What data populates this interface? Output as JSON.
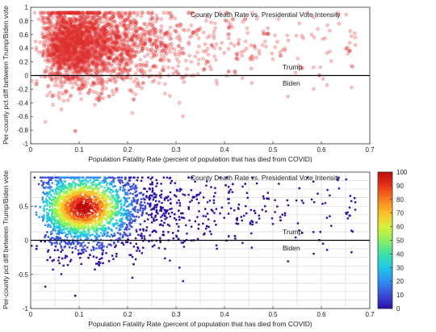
{
  "chart_data": [
    {
      "type": "scatter",
      "title": "County Death Rate vs. Presidential Vote Intensity",
      "xlabel": "Population Fatality Rate (percent of population that has died from COVID)",
      "ylabel": "Per-county pct diff between Trump/Biden vote",
      "xlim": [
        0,
        0.7
      ],
      "ylim": [
        -1,
        1
      ],
      "x_ticks": [
        "0",
        "0.1",
        "0.2",
        "0.3",
        "0.4",
        "0.5",
        "0.6",
        "0.7"
      ],
      "y_ticks": [
        "1",
        "0.8",
        "0.6",
        "0.4",
        "0.2",
        "0",
        "-0.2",
        "-0.4",
        "-0.6",
        "-0.8",
        "-1"
      ],
      "grid": false,
      "marker_color": "#e03030",
      "reference_line_y": 0,
      "annotations": [
        {
          "text": "Trump",
          "x": 0.52,
          "y": 0.09
        },
        {
          "text": "Biden",
          "x": 0.52,
          "y": -0.1
        }
      ],
      "distribution": {
        "count": 3000,
        "dense_cluster_center": [
          0.11,
          0.48
        ],
        "x_range": [
          0,
          0.67
        ],
        "y_range": [
          -0.82,
          0.92
        ]
      }
    },
    {
      "type": "heatmap",
      "title": "County Death Rate vs. Presidential Vote Intensity",
      "xlabel": "Population Fatality Rate (percent of population that has died from COVID)",
      "ylabel": "Per-county pct diff between Trump/Biden vote",
      "xlim": [
        0,
        0.7
      ],
      "ylim": [
        -1,
        1
      ],
      "x_ticks": [
        "0",
        "0.1",
        "0.2",
        "0.3",
        "0.4",
        "0.5",
        "0.6",
        "0.7"
      ],
      "y_ticks": [
        "0.5",
        "0",
        "-0.5",
        "-1"
      ],
      "grid": true,
      "reference_line_y": 0,
      "annotations": [
        {
          "text": "Trump",
          "x": 0.52,
          "y": 0.09
        },
        {
          "text": "Biden",
          "x": 0.52,
          "y": -0.1
        }
      ],
      "colorbar": {
        "min": 0,
        "max": 100,
        "ticks": [
          "100",
          "90",
          "80",
          "70",
          "60",
          "50",
          "40",
          "30",
          "20",
          "10",
          "0"
        ],
        "colors": [
          "#2b0fa6",
          "#3b4bd8",
          "#2f8ef0",
          "#1fc8e6",
          "#3ee0a8",
          "#8ef060",
          "#d8f03a",
          "#fcc02c",
          "#f87c1c",
          "#e8341a",
          "#c00a0a"
        ]
      },
      "peak": {
        "x": 0.11,
        "y": 0.48,
        "value": 100
      }
    }
  ]
}
